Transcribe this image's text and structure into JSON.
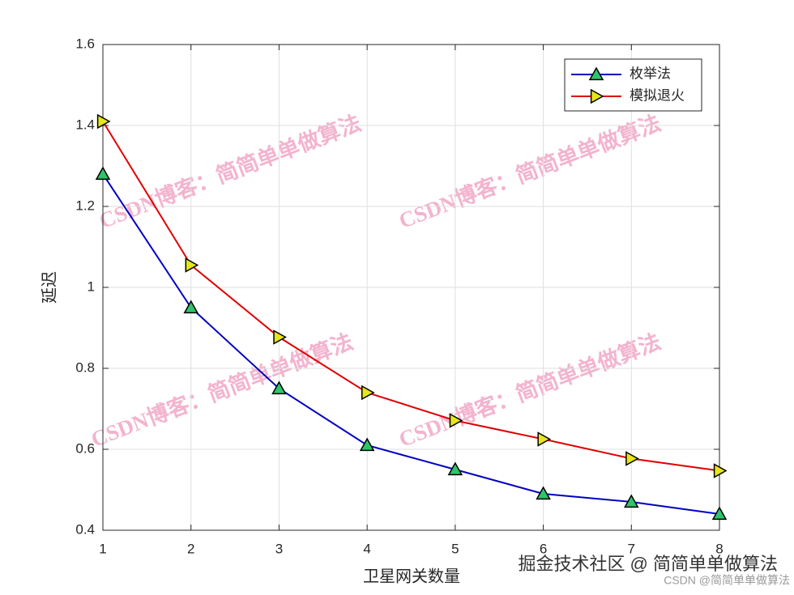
{
  "chart_data": {
    "type": "line",
    "xlabel": "卫星网关数量",
    "ylabel": "延迟",
    "x": [
      1,
      2,
      3,
      4,
      5,
      6,
      7,
      8
    ],
    "series": [
      {
        "name": "枚举法",
        "color": "#0000c0",
        "marker": "triangle-up",
        "marker_color": "#2fc46a",
        "values": [
          1.28,
          0.95,
          0.75,
          0.61,
          0.55,
          0.49,
          0.47,
          0.44
        ]
      },
      {
        "name": "模拟退火",
        "color": "#e00000",
        "marker": "triangle-right",
        "marker_color": "#e6e619",
        "values": [
          1.41,
          1.055,
          0.877,
          0.74,
          0.671,
          0.625,
          0.577,
          0.547
        ]
      }
    ],
    "xlim": [
      1,
      8
    ],
    "xticks": [
      1,
      2,
      3,
      4,
      5,
      6,
      7,
      8
    ],
    "ylim": [
      0.4,
      1.6
    ],
    "yticks": [
      0.4,
      0.6,
      0.8,
      1,
      1.2,
      1.4,
      1.6
    ],
    "grid": true,
    "legend": "upper right",
    "watermarks": [
      "CSDN博客：简简单单做算法",
      "CSDN博客：简简单单做算法",
      "CSDN博客：简简单单做算法",
      "CSDN博客：简简单单做算法"
    ],
    "footer_marks": [
      "掘金技术社区 @ 简简单单做算法",
      "CSDN @简简单单做算法"
    ]
  }
}
